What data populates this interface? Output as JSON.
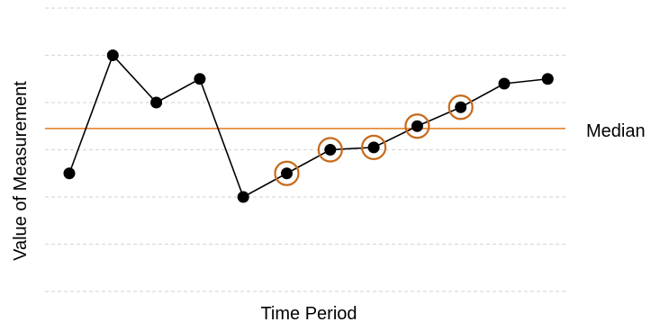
{
  "chart_data": {
    "type": "line",
    "title": "",
    "xlabel": "Time Period",
    "ylabel": "Value of Measurement",
    "x": [
      1,
      2,
      3,
      4,
      5,
      6,
      7,
      8,
      9,
      10,
      11,
      12
    ],
    "y": [
      5.0,
      10.0,
      8.0,
      9.0,
      4.0,
      5.0,
      6.0,
      6.1,
      7.0,
      7.8,
      8.8,
      9.0
    ],
    "ylim": [
      0,
      12
    ],
    "grid": true,
    "x_tick_labels_shown": false,
    "y_tick_labels_shown": false,
    "median": {
      "label": "Median",
      "value": 6.9
    },
    "highlighted_points": [
      6,
      7,
      8,
      9,
      10
    ],
    "highlight_description": "shift: consecutive points circled",
    "colors": {
      "line": "#000000",
      "points": "#000000",
      "median": "#e07a1f",
      "highlight_ring": "#c8691a",
      "grid": "#d9d9d9"
    }
  }
}
